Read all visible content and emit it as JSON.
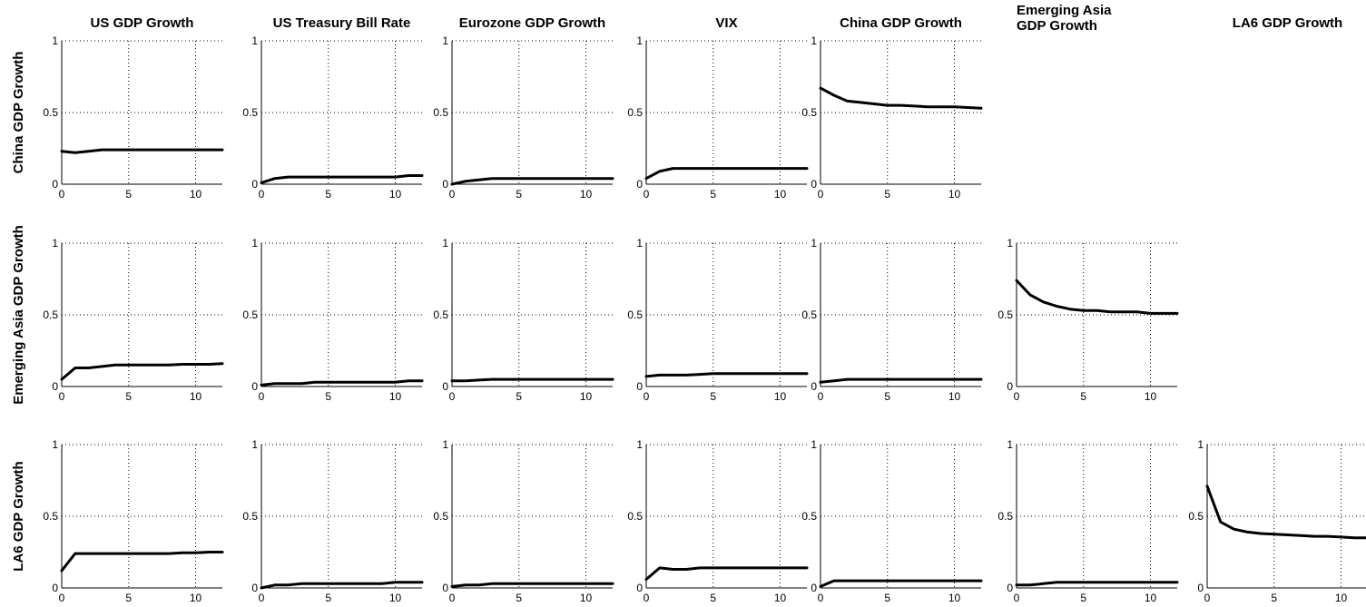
{
  "chart_data": {
    "type": "line",
    "layout": "grid",
    "grid_on": true,
    "column_titles": [
      "US GDP Growth",
      "US Treasury Bill Rate",
      "Eurozone GDP Growth",
      "VIX",
      "China GDP Growth",
      "Emerging Asia\nGDP Growth",
      "LA6 GDP Growth"
    ],
    "row_titles": [
      "China GDP Growth",
      "Emerging Asia GDP Growth",
      "LA6 GDP Growth"
    ],
    "x": [
      0,
      1,
      2,
      3,
      4,
      5,
      6,
      7,
      8,
      9,
      10,
      11,
      12
    ],
    "xlim": [
      0,
      12
    ],
    "ylim": [
      0,
      1
    ],
    "x_ticks": [
      "0",
      "5",
      "10"
    ],
    "y_ticks": [
      "0",
      "0.5",
      "1"
    ],
    "panels": [
      {
        "row": 0,
        "col": 0,
        "values": [
          0.23,
          0.22,
          0.23,
          0.24,
          0.24,
          0.24,
          0.24,
          0.24,
          0.24,
          0.24,
          0.24,
          0.24,
          0.24
        ]
      },
      {
        "row": 0,
        "col": 1,
        "values": [
          0.01,
          0.04,
          0.05,
          0.05,
          0.05,
          0.05,
          0.05,
          0.05,
          0.05,
          0.05,
          0.05,
          0.06,
          0.06
        ]
      },
      {
        "row": 0,
        "col": 2,
        "values": [
          0.0,
          0.02,
          0.03,
          0.04,
          0.04,
          0.04,
          0.04,
          0.04,
          0.04,
          0.04,
          0.04,
          0.04,
          0.04
        ]
      },
      {
        "row": 0,
        "col": 3,
        "values": [
          0.04,
          0.09,
          0.11,
          0.11,
          0.11,
          0.11,
          0.11,
          0.11,
          0.11,
          0.11,
          0.11,
          0.11,
          0.11
        ]
      },
      {
        "row": 0,
        "col": 4,
        "values": [
          0.67,
          0.62,
          0.58,
          0.57,
          0.56,
          0.55,
          0.55,
          0.545,
          0.54,
          0.54,
          0.54,
          0.535,
          0.53
        ]
      },
      {
        "row": 1,
        "col": 0,
        "values": [
          0.05,
          0.13,
          0.13,
          0.14,
          0.15,
          0.15,
          0.15,
          0.15,
          0.15,
          0.155,
          0.155,
          0.155,
          0.16
        ]
      },
      {
        "row": 1,
        "col": 1,
        "values": [
          0.01,
          0.02,
          0.02,
          0.02,
          0.03,
          0.03,
          0.03,
          0.03,
          0.03,
          0.03,
          0.03,
          0.04,
          0.04
        ]
      },
      {
        "row": 1,
        "col": 2,
        "values": [
          0.04,
          0.04,
          0.045,
          0.05,
          0.05,
          0.05,
          0.05,
          0.05,
          0.05,
          0.05,
          0.05,
          0.05,
          0.05
        ]
      },
      {
        "row": 1,
        "col": 3,
        "values": [
          0.07,
          0.08,
          0.08,
          0.08,
          0.085,
          0.09,
          0.09,
          0.09,
          0.09,
          0.09,
          0.09,
          0.09,
          0.09
        ]
      },
      {
        "row": 1,
        "col": 4,
        "values": [
          0.03,
          0.04,
          0.05,
          0.05,
          0.05,
          0.05,
          0.05,
          0.05,
          0.05,
          0.05,
          0.05,
          0.05,
          0.05
        ]
      },
      {
        "row": 1,
        "col": 5,
        "values": [
          0.74,
          0.64,
          0.59,
          0.56,
          0.54,
          0.53,
          0.53,
          0.52,
          0.52,
          0.52,
          0.51,
          0.51,
          0.51
        ]
      },
      {
        "row": 2,
        "col": 0,
        "values": [
          0.12,
          0.24,
          0.24,
          0.24,
          0.24,
          0.24,
          0.24,
          0.24,
          0.24,
          0.245,
          0.245,
          0.25,
          0.25
        ]
      },
      {
        "row": 2,
        "col": 1,
        "values": [
          0.0,
          0.02,
          0.02,
          0.03,
          0.03,
          0.03,
          0.03,
          0.03,
          0.03,
          0.03,
          0.04,
          0.04,
          0.04
        ]
      },
      {
        "row": 2,
        "col": 2,
        "values": [
          0.01,
          0.02,
          0.02,
          0.03,
          0.03,
          0.03,
          0.03,
          0.03,
          0.03,
          0.03,
          0.03,
          0.03,
          0.03
        ]
      },
      {
        "row": 2,
        "col": 3,
        "values": [
          0.06,
          0.14,
          0.13,
          0.13,
          0.14,
          0.14,
          0.14,
          0.14,
          0.14,
          0.14,
          0.14,
          0.14,
          0.14
        ]
      },
      {
        "row": 2,
        "col": 4,
        "values": [
          0.01,
          0.05,
          0.05,
          0.05,
          0.05,
          0.05,
          0.05,
          0.05,
          0.05,
          0.05,
          0.05,
          0.05,
          0.05
        ]
      },
      {
        "row": 2,
        "col": 5,
        "values": [
          0.02,
          0.02,
          0.03,
          0.04,
          0.04,
          0.04,
          0.04,
          0.04,
          0.04,
          0.04,
          0.04,
          0.04,
          0.04
        ]
      },
      {
        "row": 2,
        "col": 6,
        "values": [
          0.71,
          0.46,
          0.41,
          0.39,
          0.38,
          0.375,
          0.37,
          0.365,
          0.36,
          0.36,
          0.355,
          0.35,
          0.35
        ]
      }
    ]
  }
}
